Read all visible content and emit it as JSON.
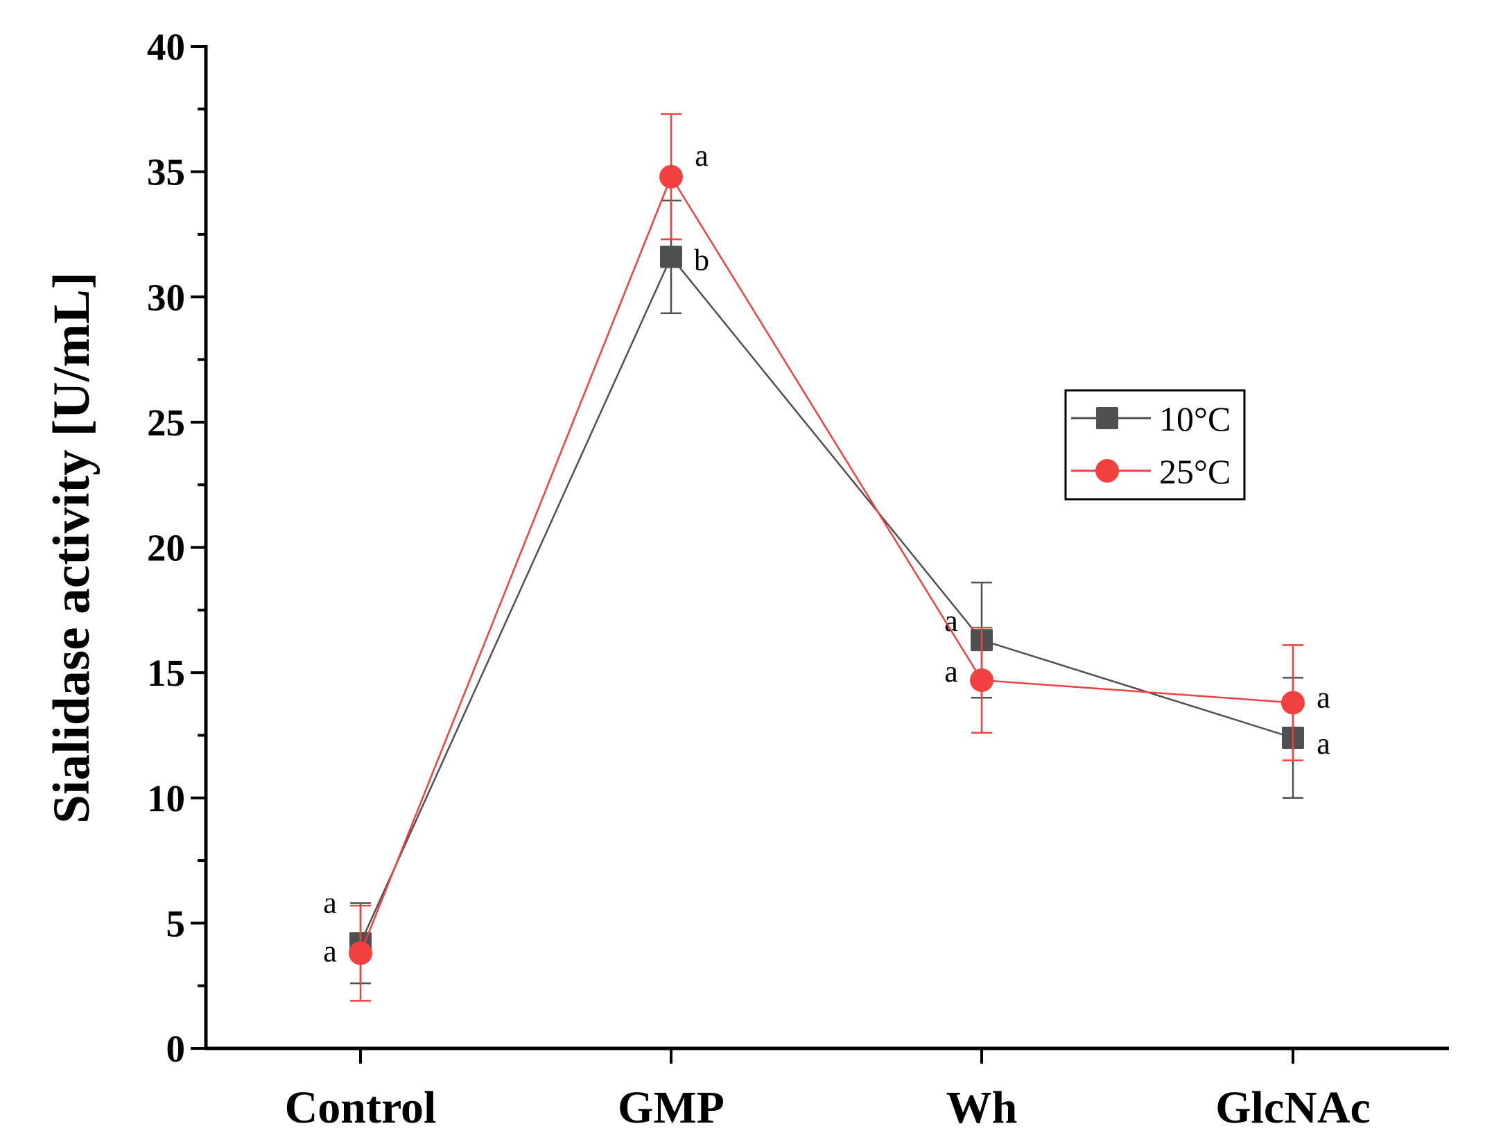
{
  "chart_data": {
    "type": "line",
    "title": "",
    "xlabel": "",
    "ylabel": "Sialidase activity [U/mL]",
    "ylim": [
      0,
      40
    ],
    "yticks": [
      0,
      5,
      10,
      15,
      20,
      25,
      30,
      35,
      40
    ],
    "categories": [
      "Control",
      "GMP",
      "Wh",
      "GlcNAc"
    ],
    "grid": false,
    "legend_placement": "center-right",
    "series": [
      {
        "name": "10°C",
        "marker": "square",
        "color": "#505050",
        "values": [
          4.2,
          31.6,
          16.3,
          12.4
        ],
        "errors": [
          1.6,
          2.25,
          2.3,
          2.4
        ],
        "labels": [
          "a",
          "b",
          "a",
          "a"
        ]
      },
      {
        "name": "25°C",
        "marker": "circle",
        "color": "#f04040",
        "values": [
          3.8,
          34.8,
          14.7,
          13.8
        ],
        "errors": [
          1.9,
          2.5,
          2.1,
          2.3
        ],
        "labels": [
          "a",
          "a",
          "a",
          "a"
        ]
      }
    ]
  }
}
